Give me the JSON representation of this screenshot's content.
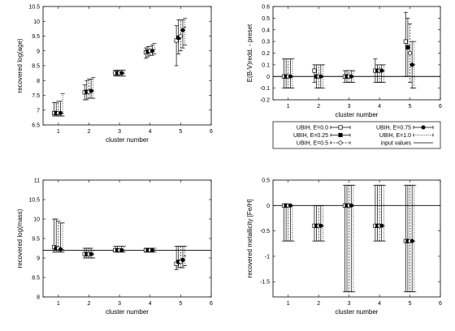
{
  "chart_data": [
    {
      "type": "scatter",
      "xlabel": "cluster number",
      "ylabel": "recovered log(age)",
      "xlim": [
        0.5,
        6
      ],
      "ylim": [
        6.5,
        10.5
      ],
      "xticks": [
        "1",
        "2",
        "3",
        "4",
        "5",
        "6"
      ],
      "yticks": [
        "6.5",
        "7",
        "7.5",
        "8",
        "8.5",
        "9",
        "9.5",
        "10",
        "10.5"
      ],
      "reference_line": null,
      "series": [
        {
          "name": "UBIH, E=0.0",
          "x": [
            1,
            2,
            3,
            4,
            5
          ],
          "y": [
            6.9,
            7.6,
            8.25,
            8.95,
            9.35
          ],
          "yerr_low": [
            6.8,
            7.35,
            8.15,
            8.75,
            8.5
          ],
          "yerr_high": [
            7.25,
            7.85,
            8.35,
            9.1,
            9.85
          ]
        },
        {
          "name": "UBIH, E=0.25",
          "x": [
            1,
            2,
            3,
            4,
            5
          ],
          "y": [
            6.9,
            7.62,
            8.25,
            8.98,
            9.45
          ],
          "yerr_low": [
            6.8,
            7.35,
            8.15,
            8.8,
            8.9
          ],
          "yerr_high": [
            7.25,
            8.0,
            8.35,
            9.15,
            10.05
          ]
        },
        {
          "name": "UBIH, E=0.5",
          "x": [
            1,
            2,
            3,
            4,
            5
          ],
          "y": [
            6.9,
            7.62,
            8.25,
            9.0,
            9.5
          ],
          "yerr_low": [
            6.8,
            7.4,
            8.15,
            8.85,
            9.0
          ],
          "yerr_high": [
            7.3,
            8.05,
            8.35,
            9.15,
            10.05
          ]
        },
        {
          "name": "UBIH, E=0.75",
          "x": [
            1,
            2,
            3,
            4,
            5
          ],
          "y": [
            6.9,
            7.65,
            8.25,
            9.0,
            9.7
          ],
          "yerr_low": [
            6.8,
            7.4,
            8.15,
            8.85,
            9.1
          ],
          "yerr_high": [
            7.3,
            8.05,
            8.35,
            9.2,
            10.05
          ]
        },
        {
          "name": "UBIH, E=1.0",
          "x": [
            1,
            2,
            3,
            4,
            5
          ],
          "y": [
            6.9,
            7.65,
            8.25,
            9.05,
            9.8
          ],
          "yerr_low": [
            6.8,
            7.4,
            8.15,
            8.9,
            9.2
          ],
          "yerr_high": [
            7.55,
            8.1,
            8.35,
            9.25,
            10.1
          ]
        }
      ]
    },
    {
      "type": "scatter",
      "xlabel": "cluster number",
      "ylabel": "E(B-V)redd. - preset",
      "xlim": [
        0.5,
        6
      ],
      "ylim": [
        -0.2,
        0.6
      ],
      "xticks": [
        "1",
        "2",
        "3",
        "4",
        "5",
        "6"
      ],
      "yticks": [
        "-0.2",
        "-0.1",
        "0",
        "0.1",
        "0.2",
        "0.3",
        "0.4",
        "0.5",
        "0.6"
      ],
      "reference_line": 0,
      "series": [
        {
          "name": "UBIH, E=0.0",
          "x": [
            1,
            2,
            3,
            4,
            5
          ],
          "y": [
            0.0,
            0.05,
            0.0,
            0.05,
            0.3
          ],
          "yerr_low": [
            -0.1,
            -0.05,
            -0.05,
            -0.05,
            0.0
          ],
          "yerr_high": [
            0.15,
            0.1,
            0.05,
            0.15,
            0.55
          ]
        },
        {
          "name": "UBIH, E=0.25",
          "x": [
            1,
            2,
            3,
            4,
            5
          ],
          "y": [
            0.0,
            0.0,
            0.0,
            0.05,
            0.25
          ],
          "yerr_low": [
            -0.1,
            -0.1,
            -0.05,
            -0.05,
            0.0
          ],
          "yerr_high": [
            0.15,
            0.1,
            0.05,
            0.1,
            0.5
          ]
        },
        {
          "name": "UBIH, E=0.5",
          "x": [
            1,
            2,
            3,
            4,
            5
          ],
          "y": [
            0.0,
            0.0,
            0.0,
            0.05,
            0.2
          ],
          "yerr_low": [
            -0.1,
            -0.1,
            -0.05,
            -0.05,
            -0.05
          ],
          "yerr_high": [
            0.15,
            0.1,
            0.05,
            0.1,
            0.45
          ]
        },
        {
          "name": "UBIH, E=0.75",
          "x": [
            1,
            2,
            3,
            4,
            5
          ],
          "y": [
            0.0,
            0.0,
            0.0,
            0.05,
            0.1
          ],
          "yerr_low": [
            -0.1,
            -0.1,
            -0.05,
            -0.05,
            -0.1
          ],
          "yerr_high": [
            0.15,
            0.1,
            0.05,
            0.1,
            0.3
          ]
        },
        {
          "name": "UBIH, E=1.0",
          "x": [
            1,
            2,
            3,
            4,
            5
          ],
          "y": [
            0.0,
            0.0,
            0.0,
            0.05,
            0.1
          ],
          "yerr_low": [
            -0.1,
            -0.1,
            -0.05,
            -0.05,
            -0.1
          ],
          "yerr_high": [
            0.15,
            0.1,
            0.05,
            0.1,
            0.3
          ]
        }
      ],
      "legend_series_order": [
        "UBIH, E=0.0",
        "UBIH, E=0.75",
        "UBIH, E=0.25",
        "UBIH, E=1.0",
        "UBIH, E=0.5",
        "input values"
      ]
    },
    {
      "type": "scatter",
      "xlabel": "cluster number",
      "ylabel": "recovered log(mass)",
      "xlim": [
        0.5,
        6
      ],
      "ylim": [
        8,
        11
      ],
      "xticks": [
        "1",
        "2",
        "3",
        "4",
        "5",
        "6"
      ],
      "yticks": [
        "8",
        "8.5",
        "9",
        "9.5",
        "10",
        "10.5",
        "11"
      ],
      "reference_line": 9.2,
      "series": [
        {
          "name": "UBIH, E=0.0",
          "x": [
            1,
            2,
            3,
            4,
            5
          ],
          "y": [
            9.28,
            9.1,
            9.2,
            9.2,
            8.85
          ],
          "yerr_low": [
            9.15,
            9.0,
            9.15,
            9.15,
            8.7
          ],
          "yerr_high": [
            10.0,
            9.25,
            9.3,
            9.25,
            9.3
          ]
        },
        {
          "name": "UBIH, E=0.25",
          "x": [
            1,
            2,
            3,
            4,
            5
          ],
          "y": [
            9.25,
            9.1,
            9.2,
            9.2,
            8.9
          ],
          "yerr_low": [
            9.15,
            9.0,
            9.15,
            9.15,
            8.75
          ],
          "yerr_high": [
            10.0,
            9.25,
            9.3,
            9.25,
            9.3
          ]
        },
        {
          "name": "UBIH, E=0.5",
          "x": [
            1,
            2,
            3,
            4,
            5
          ],
          "y": [
            9.25,
            9.1,
            9.2,
            9.2,
            8.9
          ],
          "yerr_low": [
            9.15,
            9.0,
            9.15,
            9.15,
            8.75
          ],
          "yerr_high": [
            9.95,
            9.25,
            9.3,
            9.25,
            9.3
          ]
        },
        {
          "name": "UBIH, E=0.75",
          "x": [
            1,
            2,
            3,
            4,
            5
          ],
          "y": [
            9.22,
            9.1,
            9.2,
            9.2,
            8.95
          ],
          "yerr_low": [
            9.15,
            9.0,
            9.15,
            9.15,
            8.75
          ],
          "yerr_high": [
            9.9,
            9.25,
            9.3,
            9.25,
            9.3
          ]
        },
        {
          "name": "UBIH, E=1.0",
          "x": [
            1,
            2,
            3,
            4,
            5
          ],
          "y": [
            9.22,
            9.1,
            9.2,
            9.2,
            9.05
          ],
          "yerr_low": [
            9.15,
            9.0,
            9.15,
            9.15,
            8.8
          ],
          "yerr_high": [
            9.9,
            9.2,
            9.3,
            9.25,
            9.3
          ]
        }
      ]
    },
    {
      "type": "scatter",
      "xlabel": "cluster number",
      "ylabel": "recovered metallicity [Fe/H]",
      "xlim": [
        0.5,
        6
      ],
      "ylim": [
        -1.8,
        0.5
      ],
      "xticks": [
        "1",
        "2",
        "3",
        "4",
        "5",
        "6"
      ],
      "yticks": [
        "-1.5",
        "-1",
        "-0.5",
        "0",
        "0.5"
      ],
      "reference_line": 0,
      "series": [
        {
          "name": "UBIH, E=0.0",
          "x": [
            1,
            2,
            3,
            4,
            5
          ],
          "y": [
            0.0,
            -0.4,
            0.0,
            -0.4,
            -0.7
          ],
          "yerr_low": [
            -0.7,
            -0.7,
            -1.7,
            -0.7,
            -1.7
          ],
          "yerr_high": [
            0.0,
            0.0,
            0.4,
            0.4,
            0.4
          ]
        },
        {
          "name": "UBIH, E=0.25",
          "x": [
            1,
            2,
            3,
            4,
            5
          ],
          "y": [
            0.0,
            -0.4,
            0.0,
            -0.4,
            -0.7
          ],
          "yerr_low": [
            -0.7,
            -0.7,
            -1.7,
            -0.7,
            -1.7
          ],
          "yerr_high": [
            0.0,
            0.0,
            0.4,
            0.4,
            0.4
          ]
        },
        {
          "name": "UBIH, E=0.5",
          "x": [
            1,
            2,
            3,
            4,
            5
          ],
          "y": [
            0.0,
            -0.4,
            0.0,
            -0.4,
            -0.7
          ],
          "yerr_low": [
            -0.7,
            -0.7,
            -1.7,
            -0.7,
            -1.7
          ],
          "yerr_high": [
            0.0,
            0.0,
            0.4,
            0.4,
            0.4
          ]
        },
        {
          "name": "UBIH, E=0.75",
          "x": [
            1,
            2,
            3,
            4,
            5
          ],
          "y": [
            0.0,
            -0.4,
            0.0,
            -0.4,
            -0.7
          ],
          "yerr_low": [
            -0.7,
            -0.7,
            -1.7,
            -0.7,
            -1.7
          ],
          "yerr_high": [
            0.0,
            0.0,
            0.4,
            0.4,
            0.4
          ]
        },
        {
          "name": "UBIH, E=1.0",
          "x": [
            1,
            2,
            3,
            4,
            5
          ],
          "y": [
            0.0,
            -0.4,
            0.0,
            -0.4,
            -0.7
          ],
          "yerr_low": [
            -0.7,
            -0.7,
            -1.7,
            -0.7,
            -1.7
          ],
          "yerr_high": [
            0.0,
            0.0,
            0.4,
            0.4,
            0.4
          ]
        }
      ]
    }
  ],
  "legend": {
    "entries": [
      {
        "label": "UBIH, E=0.0",
        "marker": "open-square",
        "line": "solid"
      },
      {
        "label": "UBIH, E=0.75",
        "marker": "filled-circle",
        "line": "solid"
      },
      {
        "label": "UBIH, E=0.25",
        "marker": "filled-square",
        "line": "solid"
      },
      {
        "label": "UBIH, E=1.0",
        "marker": "none",
        "line": "dotted"
      },
      {
        "label": "UBIH, E=0.5",
        "marker": "open-circle",
        "line": "dashed"
      },
      {
        "label": "input values",
        "marker": "none",
        "line": "solid"
      }
    ]
  },
  "series_style": {
    "UBIH, E=0.0": {
      "marker": "open-square",
      "dash": ""
    },
    "UBIH, E=0.25": {
      "marker": "filled-square",
      "dash": ""
    },
    "UBIH, E=0.5": {
      "marker": "open-circle",
      "dash": "2,1.5"
    },
    "UBIH, E=0.75": {
      "marker": "filled-circle",
      "dash": ""
    },
    "UBIH, E=1.0": {
      "marker": "none",
      "dash": "1,1.5"
    }
  },
  "colors": {
    "axes": "#000000",
    "background": "#ffffff"
  }
}
